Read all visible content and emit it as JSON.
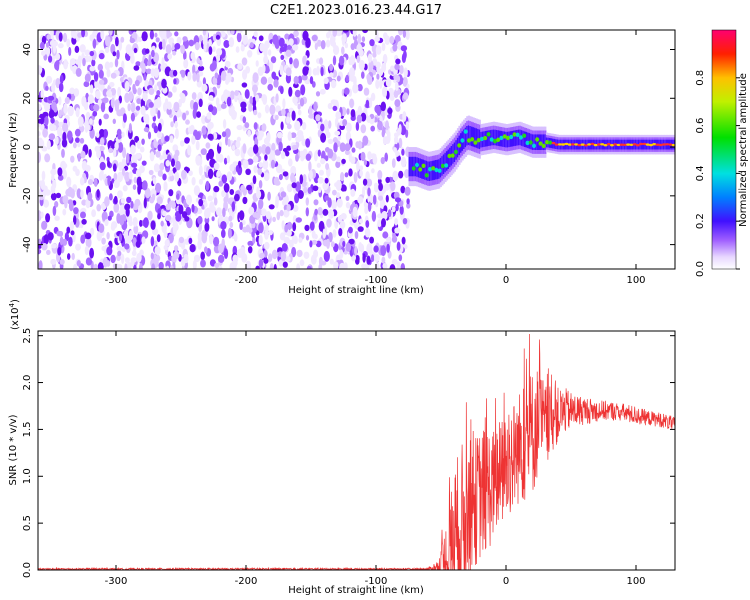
{
  "title": "C2E1.2023.016.23.44.G17",
  "chart_data": [
    {
      "type": "heatmap",
      "title": "C2E1.2023.016.23.44.G17",
      "xlabel": "Height of straight line (km)",
      "ylabel": "Frequency (Hz)",
      "xlim": [
        -360,
        130
      ],
      "ylim": [
        -50,
        48
      ],
      "xticks": [
        -300,
        -200,
        -100,
        0,
        100
      ],
      "yticks": [
        -40,
        -20,
        0,
        20,
        40
      ],
      "noise_region_x": [
        -360,
        -75
      ],
      "signal_trace": {
        "x": [
          -75,
          -70,
          -60,
          -52,
          -45,
          -40,
          -35,
          -30,
          -20,
          -10,
          0,
          10,
          20,
          30,
          40,
          60,
          80,
          100,
          130
        ],
        "frequency": [
          -8,
          -8,
          -10,
          -9,
          -5,
          -2,
          2,
          5,
          3,
          4,
          3,
          4,
          2,
          2,
          1,
          1,
          1,
          1,
          1
        ]
      },
      "colorbar": {
        "label": "Normalized spectral amplitude",
        "ticks": [
          0.0,
          0.2,
          0.4,
          0.6,
          0.8
        ],
        "tick_labels": [
          "0.0",
          "0.2",
          "0.4",
          "0.6",
          "0.8"
        ],
        "range": [
          0,
          1
        ]
      }
    },
    {
      "type": "line",
      "xlabel": "Height of straight line (km)",
      "ylabel": "SNR (10 * v/v)",
      "scale_label": "(x10",
      "scale_exponent": "4",
      "scale_close": ")",
      "xlim": [
        -360,
        130
      ],
      "ylim": [
        0,
        2.55
      ],
      "xticks": [
        -300,
        -200,
        -100,
        0,
        100
      ],
      "yticks": [
        0.0,
        0.5,
        1.0,
        1.5,
        2.0,
        2.5
      ],
      "ytick_labels": [
        "0.0",
        "0.5",
        "1.0",
        "1.5",
        "2.0",
        "2.5"
      ],
      "color": "#ee3333",
      "series": [
        {
          "name": "SNR",
          "x": [
            -360,
            -300,
            -200,
            -100,
            -60,
            -52,
            -45,
            -40,
            -35,
            -30,
            -25,
            -20,
            -15,
            -10,
            -5,
            0,
            5,
            10,
            15,
            20,
            25,
            30,
            35,
            40,
            45,
            50,
            60,
            70,
            80,
            90,
            100,
            110,
            120,
            130
          ],
          "mean": [
            0.01,
            0.01,
            0.01,
            0.01,
            0.01,
            0.02,
            0.1,
            0.3,
            0.45,
            0.6,
            0.7,
            0.8,
            0.85,
            0.9,
            1.0,
            1.1,
            1.2,
            1.3,
            1.4,
            1.45,
            1.6,
            1.55,
            1.6,
            1.65,
            1.7,
            1.7,
            1.7,
            1.7,
            1.7,
            1.68,
            1.65,
            1.62,
            1.6,
            1.55
          ],
          "spread": [
            0.01,
            0.01,
            0.01,
            0.01,
            0.01,
            0.1,
            0.5,
            0.8,
            0.9,
            0.8,
            0.7,
            0.7,
            0.7,
            0.6,
            0.6,
            0.6,
            0.6,
            0.6,
            0.7,
            0.7,
            0.6,
            0.45,
            0.35,
            0.3,
            0.25,
            0.2,
            0.15,
            0.12,
            0.1,
            0.1,
            0.1,
            0.08,
            0.08,
            0.08
          ]
        }
      ]
    }
  ]
}
